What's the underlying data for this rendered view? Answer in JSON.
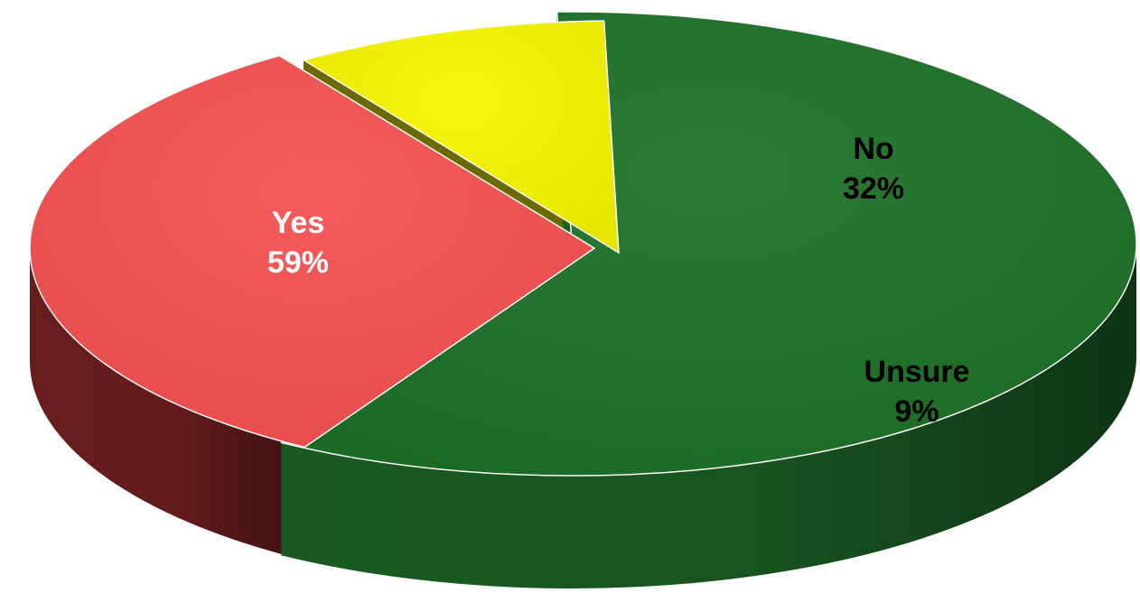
{
  "chart_data": {
    "type": "pie",
    "title": "",
    "legend": "none",
    "slices": [
      {
        "category": "Yes",
        "value": 59,
        "value_label": "59%",
        "color": "#1f7129",
        "side_color": "#1b5f24",
        "label_color": "#ffffff"
      },
      {
        "category": "No",
        "value": 32,
        "value_label": "32%",
        "color": "#f55151",
        "side_color": "#6e1f1f",
        "label_color": "#000000"
      },
      {
        "category": "Unsure",
        "value": 9,
        "value_label": "9%",
        "color": "#f5f500",
        "side_color": "#6a6a00",
        "label_color": "#000000"
      }
    ]
  }
}
